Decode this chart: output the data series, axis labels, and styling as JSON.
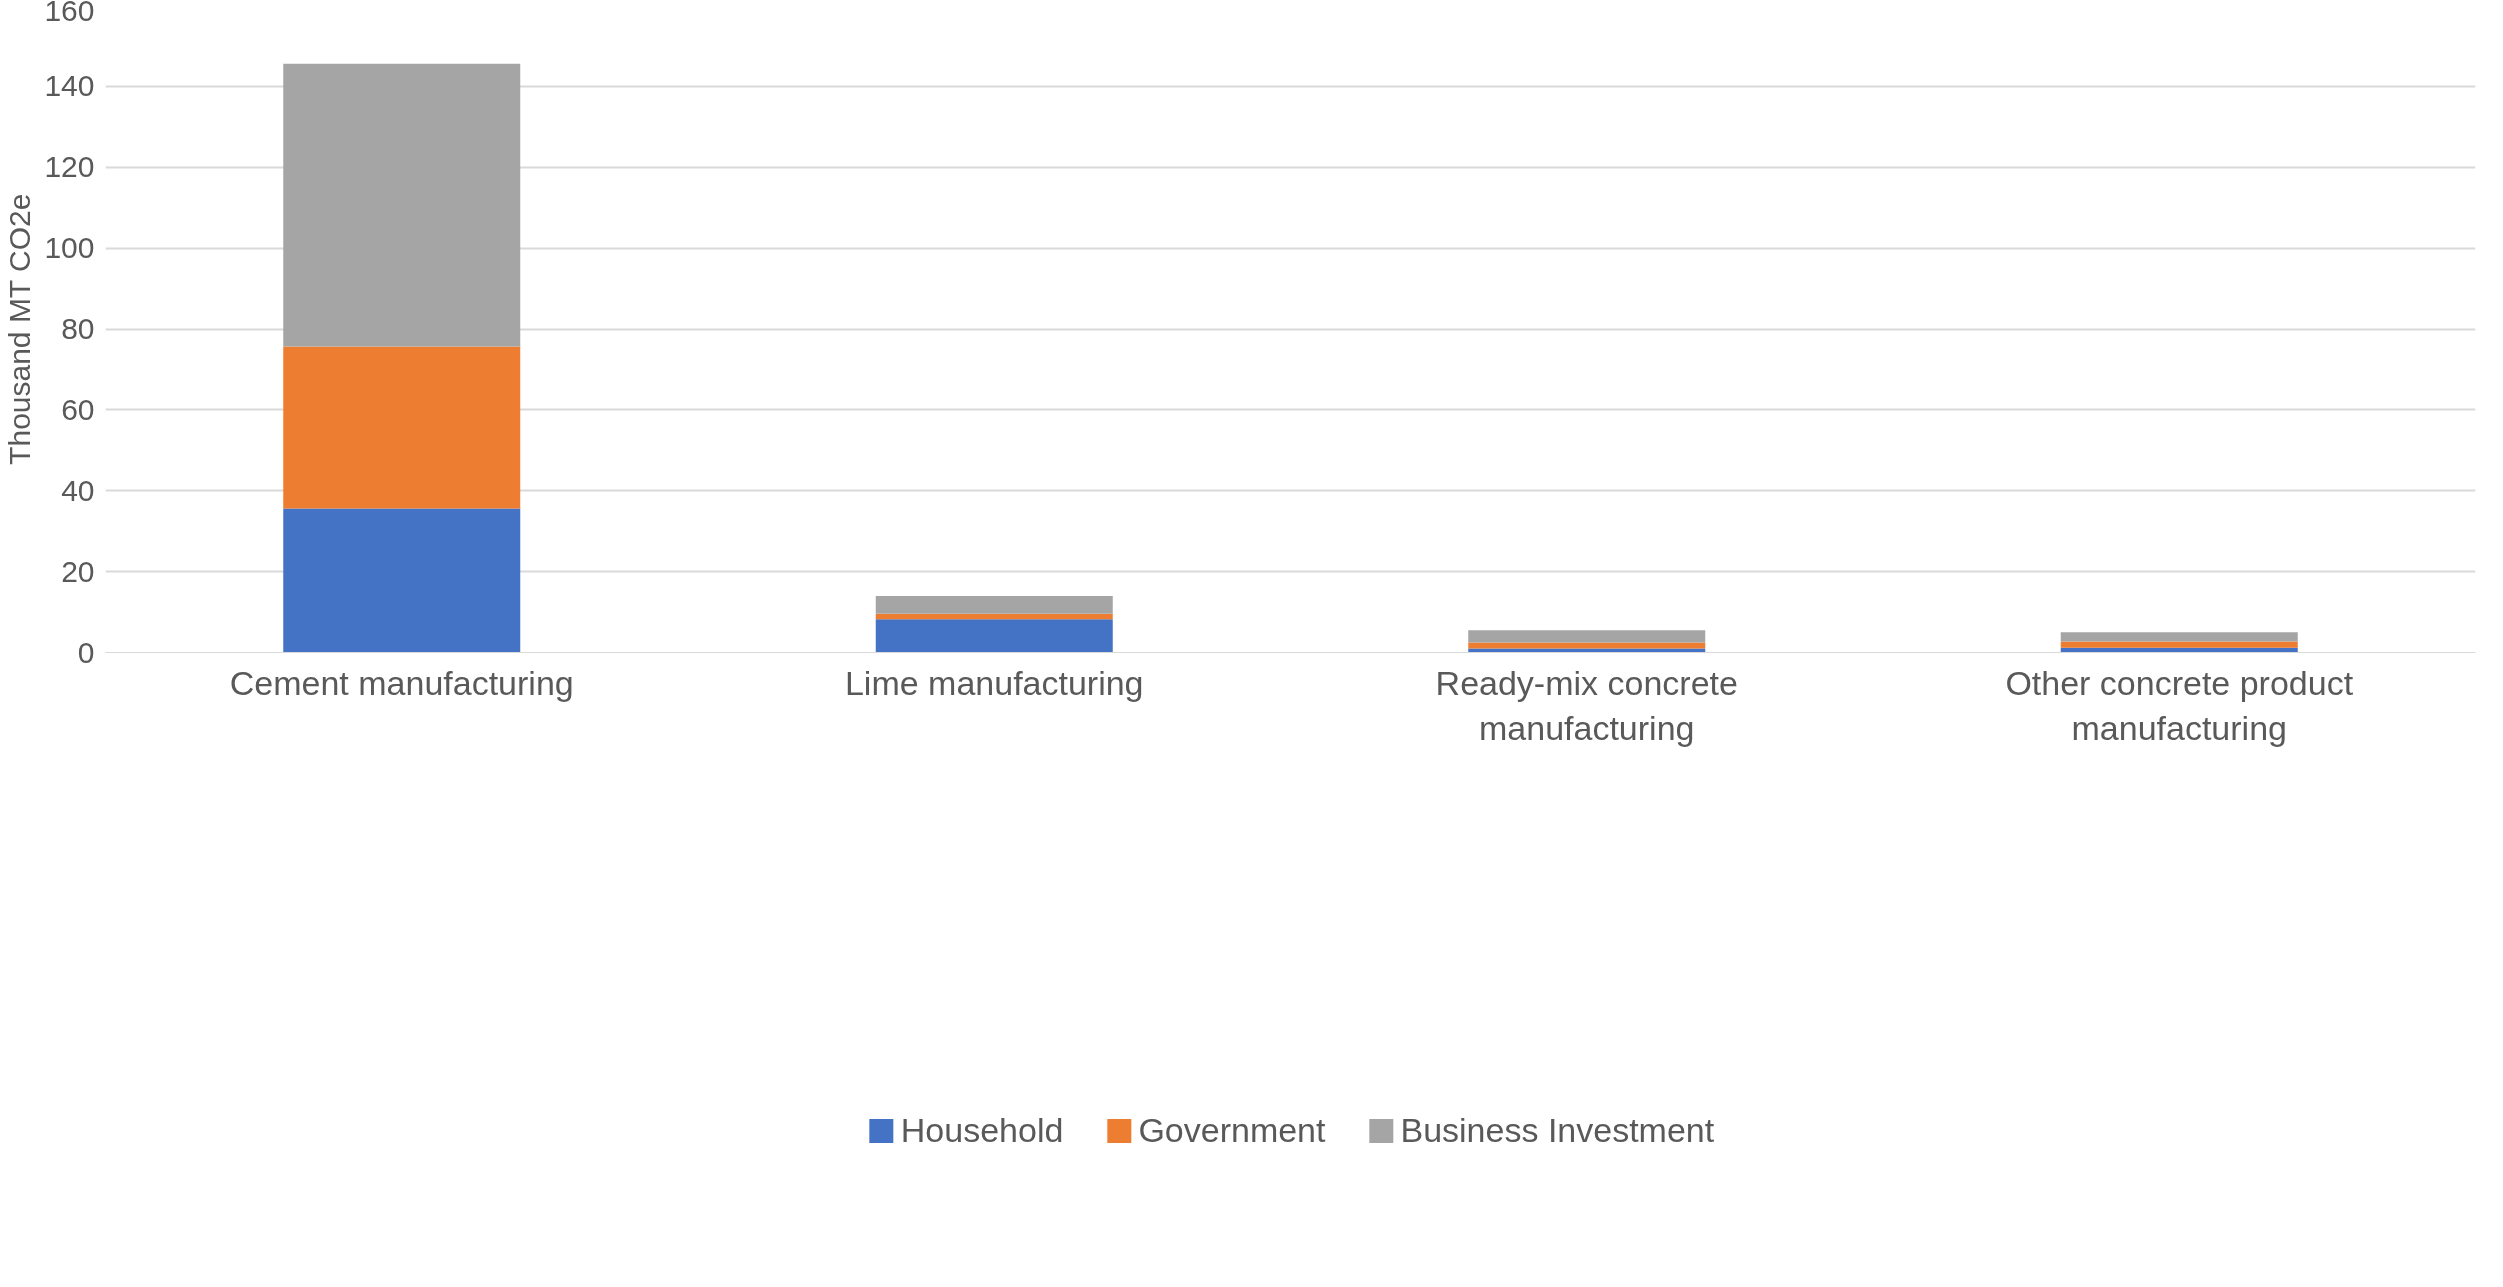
{
  "chart_data": {
    "type": "bar",
    "stacked": true,
    "ylabel": "Thousand MT CO2e",
    "categories": [
      "Cement manufacturing",
      "Lime manufacturing",
      "Ready-mix concrete\nmanufacturing",
      "Other concrete product\nmanufacturing"
    ],
    "series": [
      {
        "name": "Household",
        "color": "#4472c4",
        "values": [
          35.6,
          8.2,
          1.0,
          1.2
        ]
      },
      {
        "name": "Government",
        "color": "#ed7d31",
        "values": [
          40.1,
          1.4,
          1.5,
          1.5
        ]
      },
      {
        "name": "Business Investment",
        "color": "#a5a5a5",
        "values": [
          69.9,
          4.4,
          3.0,
          2.3
        ]
      }
    ],
    "ylim": [
      0,
      160
    ],
    "yticks": [
      0,
      20,
      40,
      60,
      80,
      100,
      120,
      140,
      160
    ],
    "grid": "y",
    "legend": "bottom"
  }
}
